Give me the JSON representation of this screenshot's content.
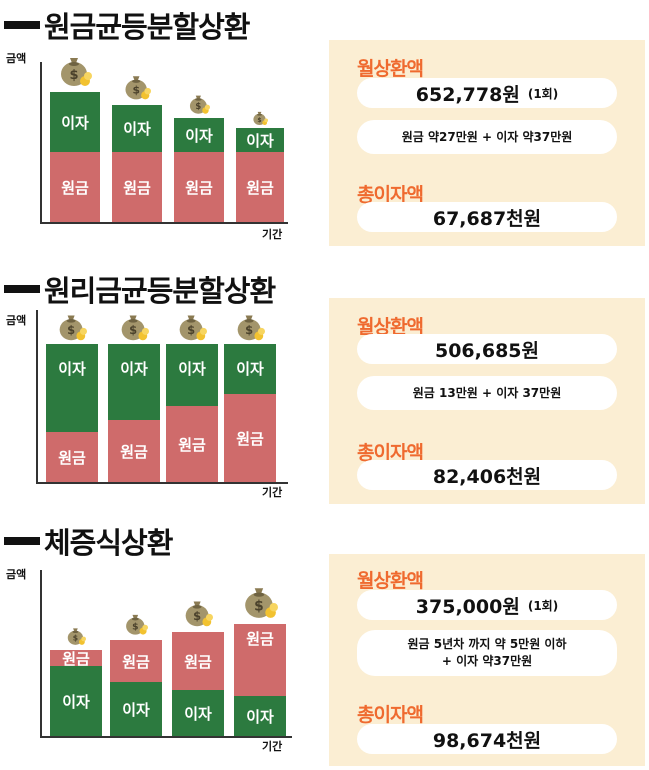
{
  "sections": [
    {
      "title": "원금균등분할상환",
      "y_label": "금액",
      "x_label": "기간",
      "bars": [
        {
          "top_label": "이자",
          "bottom_label": "원금"
        },
        {
          "top_label": "이자",
          "bottom_label": "원금"
        },
        {
          "top_label": "이자",
          "bottom_label": "원금"
        },
        {
          "top_label": "이자",
          "bottom_label": "원금"
        }
      ],
      "monthly_label": "월상환액",
      "monthly_value": "652,778원",
      "monthly_note": "(1회)",
      "breakdown": "원금 약27만원 + 이자 약37만원",
      "total_label": "총이자액",
      "total_value": "67,687천원"
    },
    {
      "title": "원리금균등분할상환",
      "y_label": "금액",
      "x_label": "기간",
      "bars": [
        {
          "top_label": "이자",
          "bottom_label": "원금"
        },
        {
          "top_label": "이자",
          "bottom_label": "원금"
        },
        {
          "top_label": "이자",
          "bottom_label": "원금"
        },
        {
          "top_label": "이자",
          "bottom_label": "원금"
        }
      ],
      "monthly_label": "월상환액",
      "monthly_value": "506,685원",
      "monthly_note": "",
      "breakdown": "원금 13만원 + 이자 37만원",
      "total_label": "총이자액",
      "total_value": "82,406천원"
    },
    {
      "title": "체증식상환",
      "y_label": "금액",
      "x_label": "기간",
      "bars": [
        {
          "top_label": "원금",
          "bottom_label": "이자"
        },
        {
          "top_label": "원금",
          "bottom_label": "이자"
        },
        {
          "top_label": "원금",
          "bottom_label": "이자"
        },
        {
          "top_label": "원금",
          "bottom_label": "이자"
        }
      ],
      "monthly_label": "월상환액",
      "monthly_value": "375,000원",
      "monthly_note": "(1회)",
      "breakdown_line1": "원금 5년차 까지 약 5만원 이하",
      "breakdown_line2": "+ 이자 약37만원",
      "total_label": "총이자액",
      "total_value": "98,674천원"
    }
  ],
  "colors": {
    "interest_green": "#2c7a3f",
    "principal_red": "#cf6b6b",
    "panel_bg": "#fbeed3",
    "label_orange": "#ef6a2f"
  },
  "icons": [
    "money-bag-icon"
  ]
}
